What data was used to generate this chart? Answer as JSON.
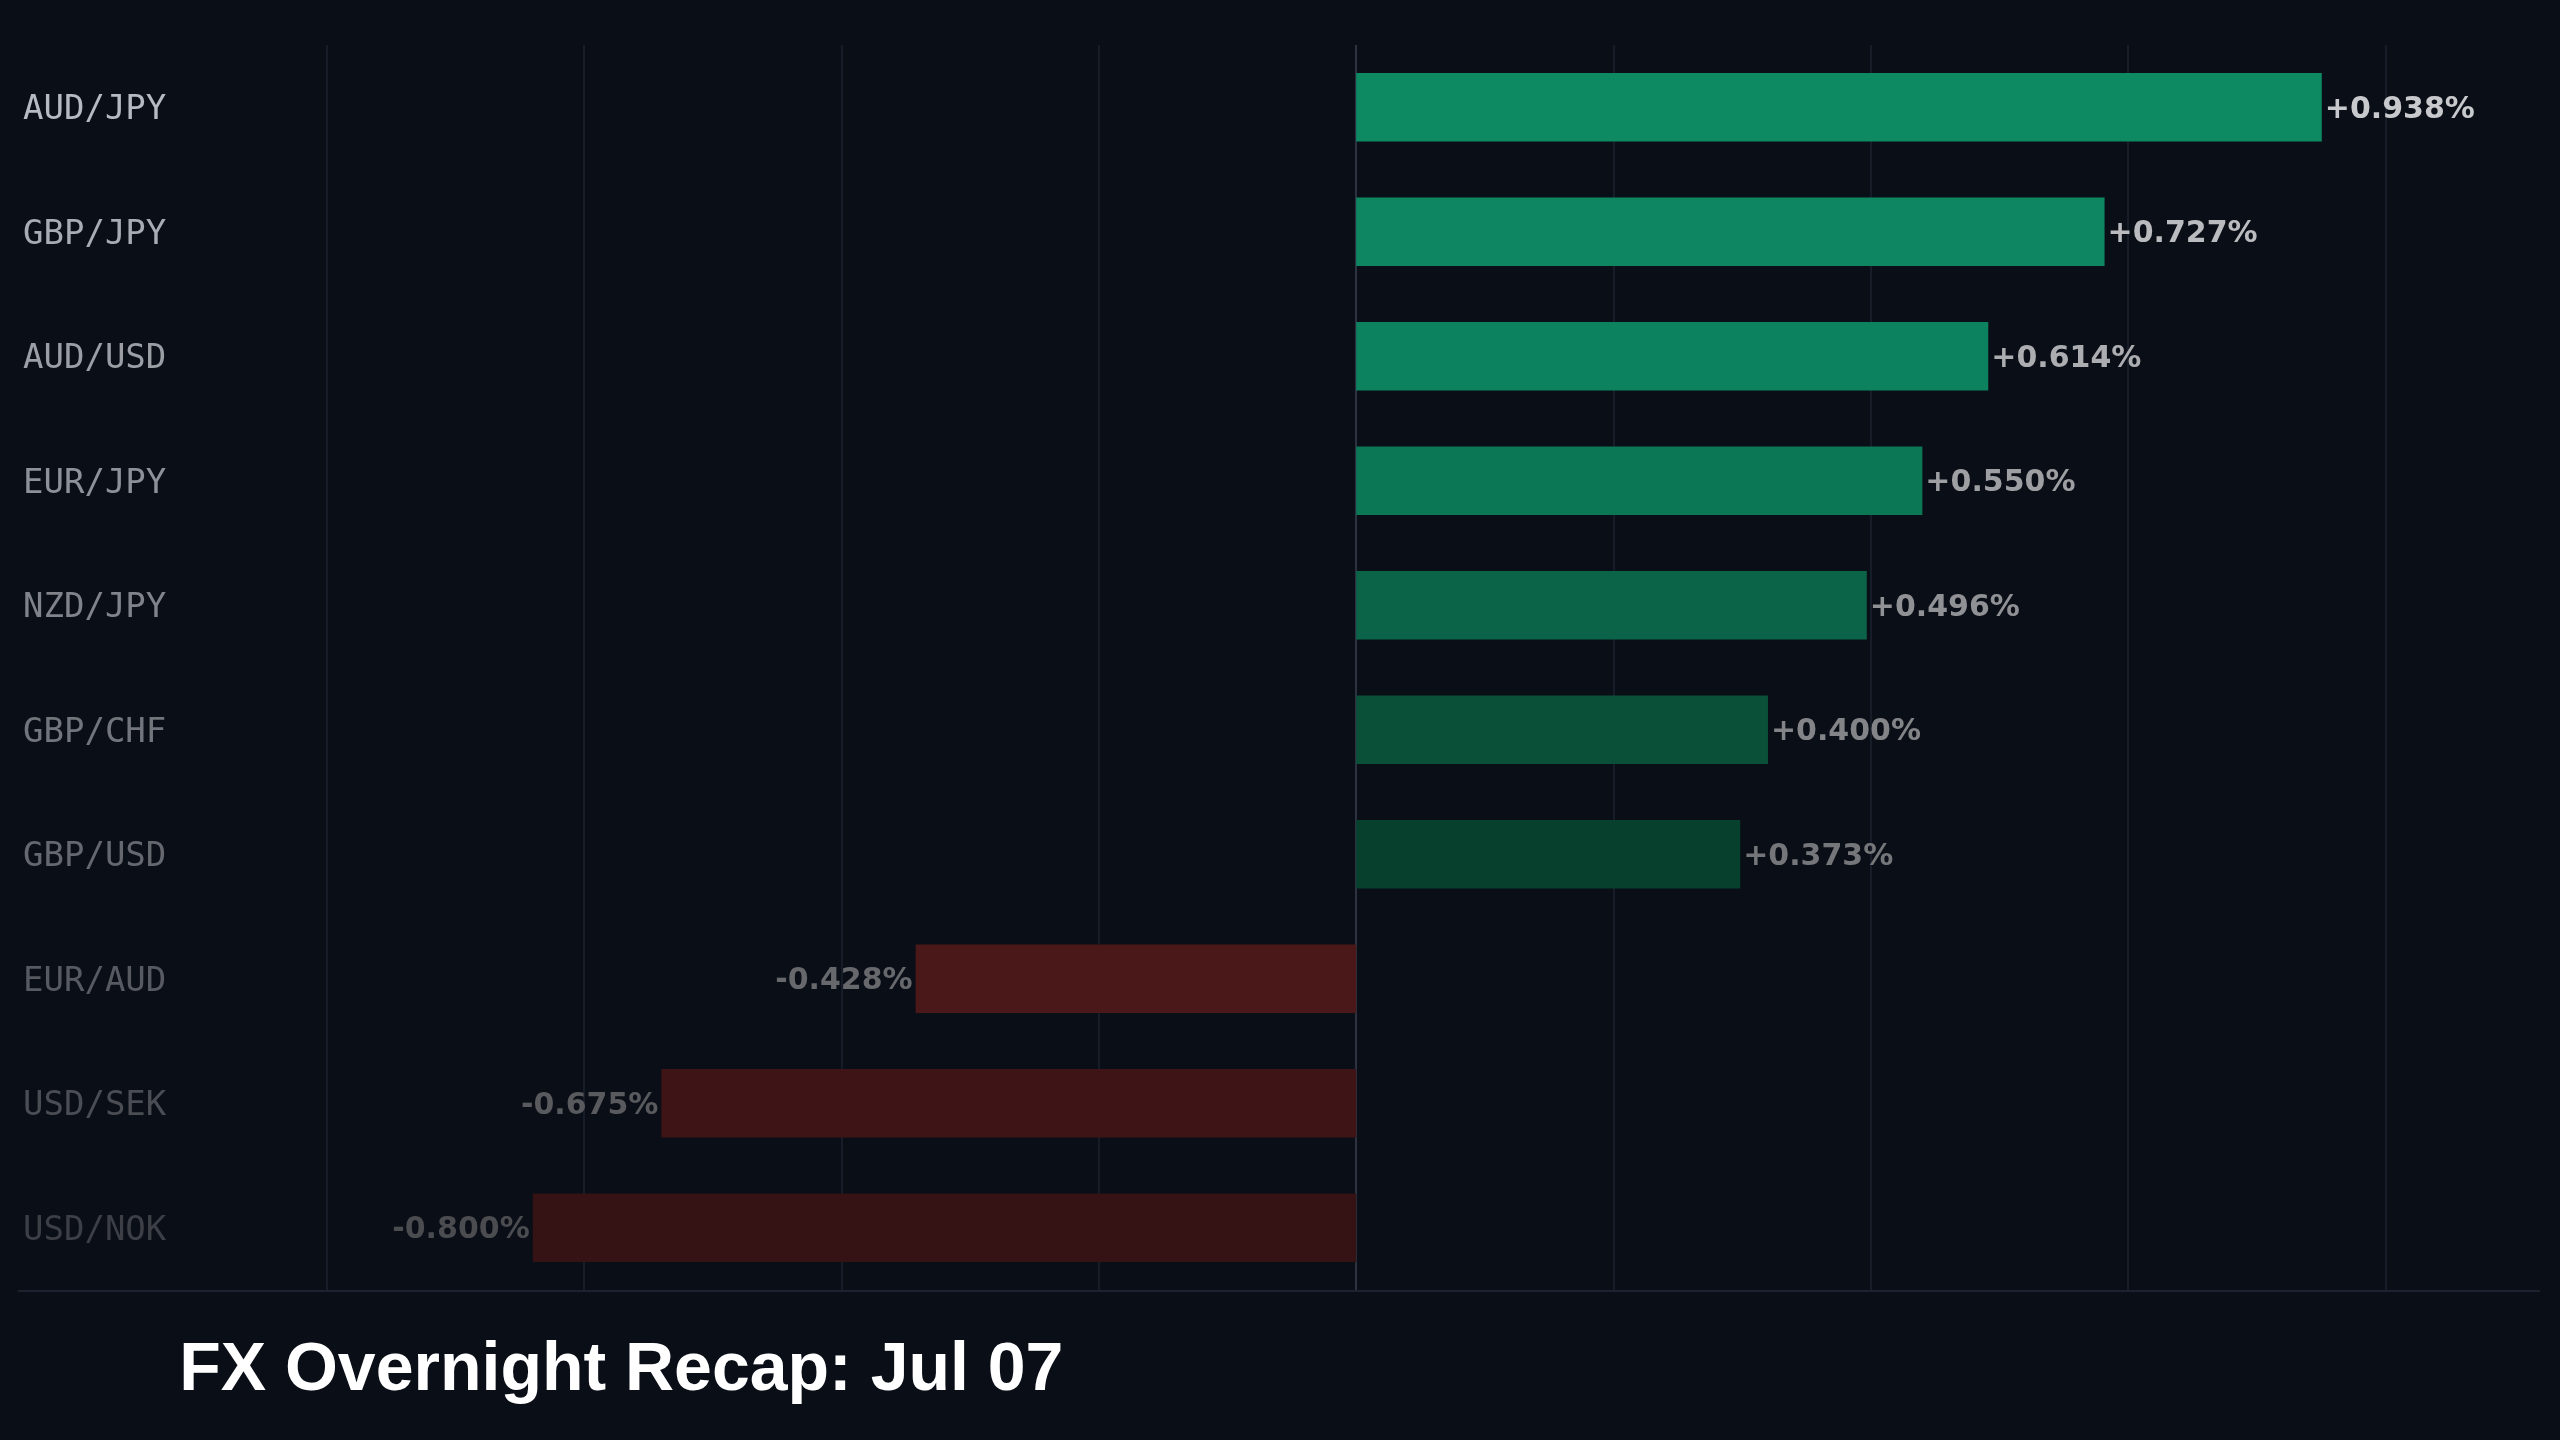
{
  "chart_data": {
    "type": "bar",
    "orientation": "horizontal",
    "title": "FX Overnight Recap: Jul 07",
    "categories": [
      "AUD/JPY",
      "GBP/JPY",
      "AUD/USD",
      "EUR/JPY",
      "NZD/JPY",
      "GBP/CHF",
      "GBP/USD",
      "EUR/AUD",
      "USD/SEK",
      "USD/NOK"
    ],
    "values": [
      0.938,
      0.727,
      0.614,
      0.55,
      0.496,
      0.4,
      0.373,
      -0.428,
      -0.675,
      -0.8
    ],
    "value_labels": [
      "+0.938%",
      "+0.727%",
      "+0.614%",
      "+0.550%",
      "+0.496%",
      "+0.400%",
      "+0.373%",
      "-0.428%",
      "-0.675%",
      "-0.800%"
    ],
    "colors": [
      "#0e8a62",
      "#0e8661",
      "#0d825e",
      "#0c7755",
      "#0b6448",
      "#0a5039",
      "#07412e",
      "#4a1818",
      "#3f1416",
      "#351214"
    ],
    "xlim": [
      -1.3,
      1.15
    ],
    "xticks": [
      {
        "value": -1.0,
        "label": null
      },
      {
        "value": -0.75,
        "label": null
      },
      {
        "value": -0.5,
        "label": null
      },
      {
        "value": -0.25,
        "label": null
      },
      {
        "value": 0,
        "label": null
      },
      {
        "value": 0.25,
        "label": null
      },
      {
        "value": 0.5,
        "label": null
      },
      {
        "value": 0.75,
        "label": null
      },
      {
        "value": 1.0,
        "label": null
      }
    ],
    "grid": "x",
    "tick_labels": "y"
  }
}
